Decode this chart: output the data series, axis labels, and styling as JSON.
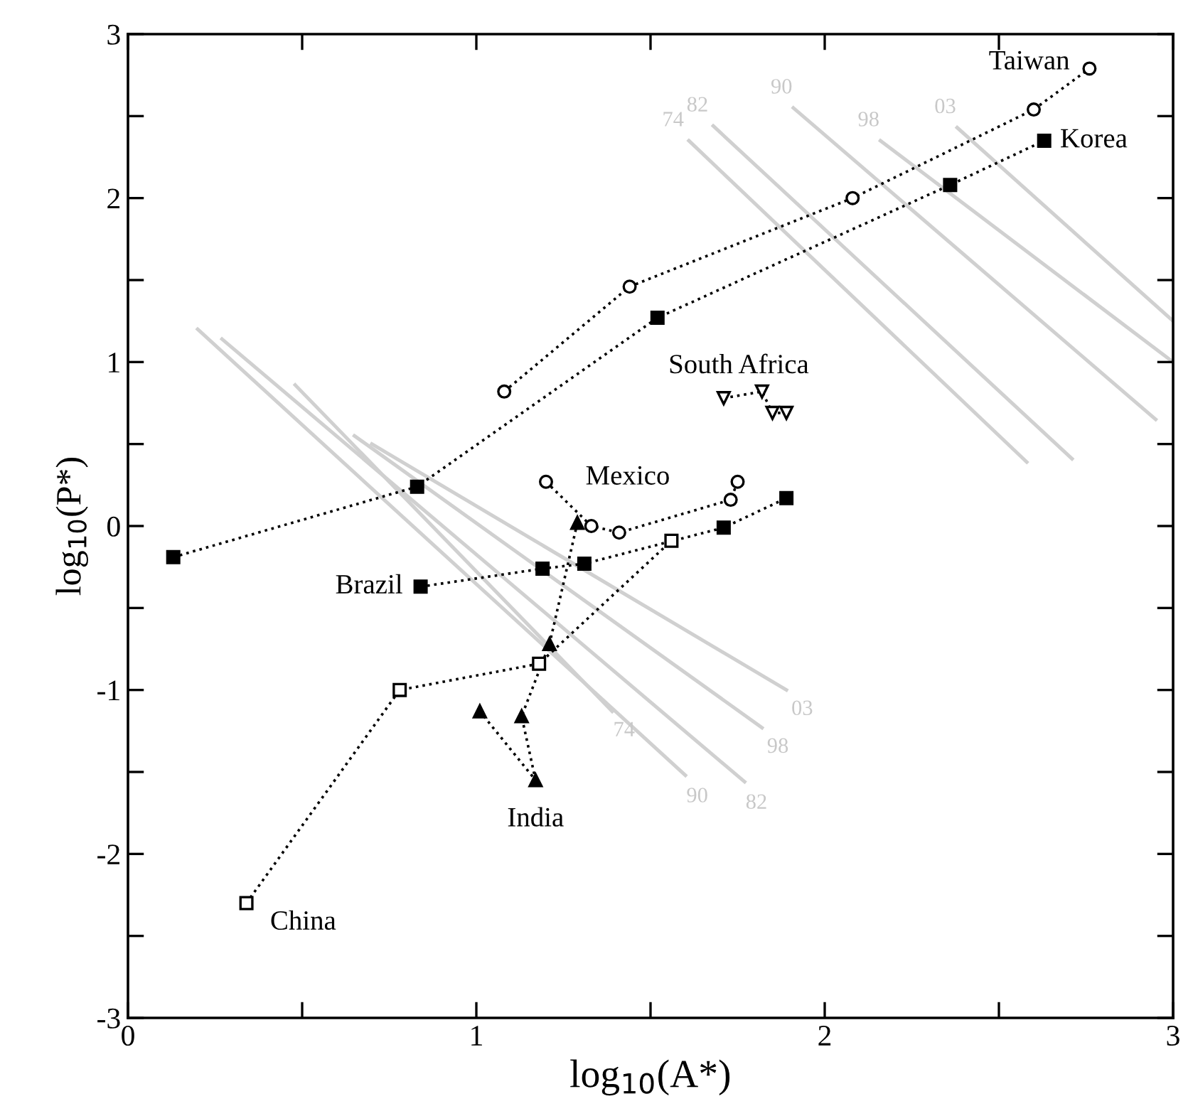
{
  "chart_data": {
    "type": "line",
    "xlabel": "log$_{10}$(A*)",
    "ylabel": "log$_{10}$(P*)",
    "xlim": [
      0,
      3
    ],
    "ylim": [
      -3,
      3
    ],
    "xticks": [
      0,
      {
        "value": 0.5,
        "label": null
      },
      1,
      {
        "value": 1.5,
        "label": null
      },
      2,
      {
        "value": 2.5,
        "label": null
      },
      3
    ],
    "yticks": [
      -3,
      {
        "value": -2.5,
        "label": null
      },
      -2,
      {
        "value": -1.5,
        "label": null
      },
      -1,
      {
        "value": -0.5,
        "label": null
      },
      0,
      {
        "value": 0.5,
        "label": null
      },
      1,
      {
        "value": 1.5,
        "label": null
      },
      2,
      {
        "value": 2.5,
        "label": null
      },
      3
    ],
    "grid": false,
    "legend": false,
    "series": [
      {
        "color": "#d0d0d0",
        "marker": "none",
        "line_style": "solid",
        "x": [
          1.61,
          2.58
        ],
        "values": [
          2.35,
          0.39
        ]
      },
      {
        "color": "#d0d0d0",
        "marker": "none",
        "line_style": "solid",
        "x": [
          1.68,
          2.71
        ],
        "values": [
          2.44,
          0.41
        ]
      },
      {
        "color": "#d0d0d0",
        "marker": "none",
        "line_style": "solid",
        "x": [
          1.91,
          2.95
        ],
        "values": [
          2.55,
          0.65
        ]
      },
      {
        "color": "#d0d0d0",
        "marker": "none",
        "line_style": "solid",
        "x": [
          2.16,
          3.0
        ],
        "values": [
          2.35,
          1.0
        ]
      },
      {
        "color": "#d0d0d0",
        "marker": "none",
        "line_style": "solid",
        "x": [
          2.38,
          3.0
        ],
        "values": [
          2.43,
          1.25
        ]
      },
      {
        "color": "#d0d0d0",
        "marker": "none",
        "line_style": "solid",
        "x": [
          0.48,
          1.39
        ],
        "values": [
          0.86,
          -1.13
        ]
      },
      {
        "color": "#d0d0d0",
        "marker": "none",
        "line_style": "solid",
        "x": [
          0.2,
          1.6
        ],
        "values": [
          1.2,
          -1.52
        ]
      },
      {
        "color": "#d0d0d0",
        "marker": "none",
        "line_style": "solid",
        "x": [
          0.27,
          1.77
        ],
        "values": [
          1.14,
          -1.56
        ]
      },
      {
        "color": "#d0d0d0",
        "marker": "none",
        "line_style": "solid",
        "x": [
          0.65,
          1.82
        ],
        "values": [
          0.55,
          -1.23
        ]
      },
      {
        "color": "#d0d0d0",
        "marker": "none",
        "line_style": "solid",
        "x": [
          0.7,
          1.89
        ],
        "values": [
          0.5,
          -1.0
        ]
      },
      {
        "color": "#000000",
        "marker": "circle",
        "line_style": "dotted",
        "x": [
          1.08,
          1.44,
          2.08,
          2.6,
          2.76
        ],
        "values": [
          0.82,
          1.46,
          2.0,
          2.54,
          2.79
        ]
      },
      {
        "color": "#000000",
        "marker": "square",
        "line_style": "dotted",
        "x": [
          0.13,
          0.83,
          1.52,
          2.36,
          2.63
        ],
        "values": [
          -0.19,
          0.24,
          1.27,
          2.08,
          2.35
        ]
      },
      {
        "color": "#000000",
        "marker": "square",
        "line_style": "dotted",
        "x": [
          0.84,
          1.19,
          1.31,
          1.71,
          1.89
        ],
        "values": [
          -0.37,
          -0.26,
          -0.23,
          -0.01,
          0.17
        ]
      },
      {
        "color": "#000000",
        "marker": "circle",
        "line_style": "dotted",
        "x": [
          1.2,
          1.33,
          1.41,
          1.73,
          1.75
        ],
        "values": [
          0.27,
          0.0,
          -0.04,
          0.16,
          0.27
        ]
      },
      {
        "color": "#000000",
        "marker": "triangle",
        "line_style": "dotted",
        "x": [
          1.29,
          1.21,
          1.13,
          1.17,
          1.01
        ],
        "values": [
          0.02,
          -0.72,
          -1.16,
          -1.55,
          -1.13
        ]
      },
      {
        "color": "#000000",
        "marker": "square",
        "line_style": "dotted",
        "x": [
          0.34,
          0.78,
          1.18,
          1.56
        ],
        "values": [
          -2.3,
          -1.0,
          -0.84,
          -0.09
        ]
      },
      {
        "color": "#000000",
        "marker": "triangle",
        "line_style": "dotted",
        "x": [
          1.71,
          1.82,
          1.85,
          1.89
        ],
        "values": [
          0.78,
          0.82,
          0.69,
          0.69
        ]
      }
    ],
    "annotations": [
      {
        "text": "Taiwan",
        "x": 2.76,
        "y": 2.79
      },
      {
        "text": "Korea",
        "x": 2.63,
        "y": 2.35
      },
      {
        "text": "South Africa",
        "x": 1.71,
        "y": 0.78
      },
      {
        "text": "Mexico",
        "x": 1.2,
        "y": 0.27
      },
      {
        "text": "Brazil",
        "x": 0.84,
        "y": -0.37
      },
      {
        "text": "India",
        "x": 1.17,
        "y": -1.55
      },
      {
        "text": "China",
        "x": 0.34,
        "y": -2.3
      },
      {
        "text": "74",
        "x": 1.61,
        "y": 2.35
      },
      {
        "text": "82",
        "x": 1.68,
        "y": 2.44
      },
      {
        "text": "90",
        "x": 1.91,
        "y": 2.55
      },
      {
        "text": "98",
        "x": 2.16,
        "y": 2.35
      },
      {
        "text": "03",
        "x": 2.38,
        "y": 2.43
      },
      {
        "text": "74",
        "x": 1.39,
        "y": -1.13
      },
      {
        "text": "90",
        "x": 1.6,
        "y": -1.52
      },
      {
        "text": "82",
        "x": 1.77,
        "y": -1.56
      },
      {
        "text": "98",
        "x": 1.82,
        "y": -1.23
      },
      {
        "text": "03",
        "x": 1.89,
        "y": -1.0
      }
    ]
  }
}
